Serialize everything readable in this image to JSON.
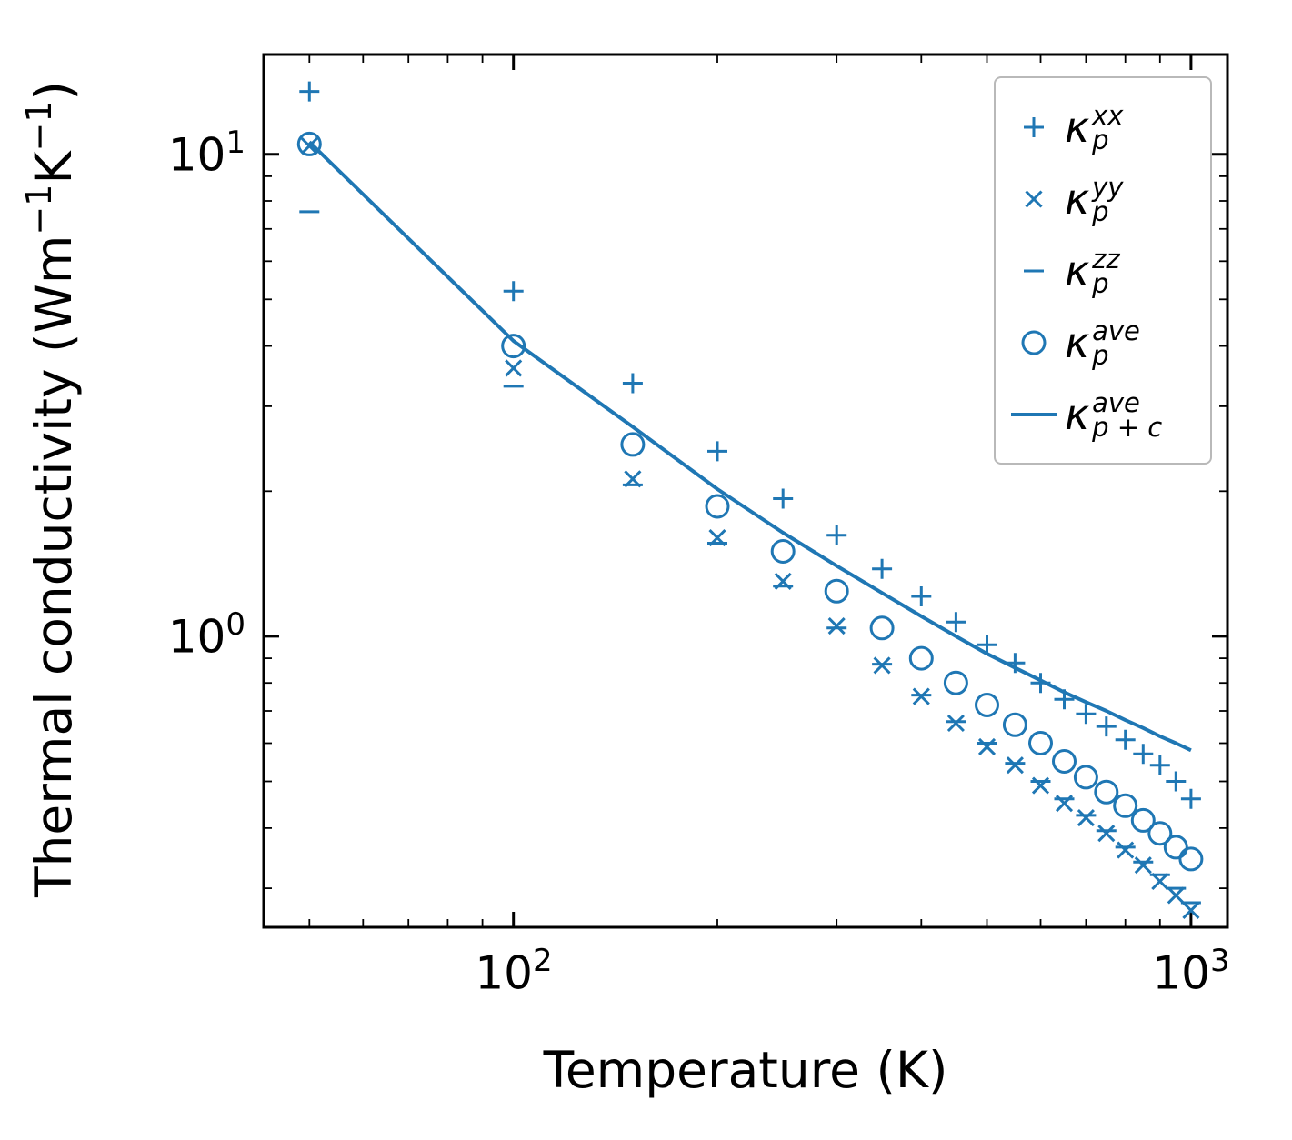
{
  "figure": {
    "xlabel": "Temperature (K)",
    "ylabel_parts": {
      "t1": "Thermal conductivity (Wm",
      "s1": "−1",
      "t2": "K",
      "s2": "−1",
      "t3": ")"
    },
    "x_ticks": [
      {
        "base": "10",
        "exp": "2"
      },
      {
        "base": "10",
        "exp": "3"
      }
    ],
    "y_ticks": [
      {
        "base": "10",
        "exp": "1"
      },
      {
        "base": "10",
        "exp": "0"
      }
    ]
  },
  "legend": {
    "items": [
      {
        "marker": "plus",
        "symbol": "κ",
        "sup": "xx",
        "sub": "p"
      },
      {
        "marker": "cross",
        "symbol": "κ",
        "sup": "yy",
        "sub": "p"
      },
      {
        "marker": "hline",
        "symbol": "κ",
        "sup": "zz",
        "sub": "p"
      },
      {
        "marker": "circle",
        "symbol": "κ",
        "sup": "ave",
        "sub": "p"
      },
      {
        "marker": "line",
        "symbol": "κ",
        "sup": "ave",
        "sub": "p + c"
      }
    ]
  },
  "colors": {
    "accent": "#1f77b4",
    "spine": "#000000",
    "legend_border": "#b9b9b9",
    "background": "#ffffff"
  },
  "chart_data": {
    "type": "scatter",
    "title": "",
    "xlabel": "Temperature (K)",
    "ylabel": "Thermal conductivity (Wm−1K−1)",
    "xscale": "log",
    "yscale": "log",
    "xlim": [
      42.8,
      1132
    ],
    "ylim": [
      0.249,
      16.1
    ],
    "grid": false,
    "legend_position": "upper right",
    "color": "#1f77b4",
    "x": [
      50,
      100,
      150,
      200,
      250,
      300,
      350,
      400,
      450,
      500,
      550,
      600,
      650,
      700,
      750,
      800,
      850,
      900,
      950,
      1000
    ],
    "series": [
      {
        "name": "kappa_p_xx",
        "marker": "plus",
        "values": [
          13.5,
          5.2,
          3.35,
          2.42,
          1.93,
          1.62,
          1.38,
          1.21,
          1.07,
          0.96,
          0.88,
          0.8,
          0.74,
          0.69,
          0.65,
          0.61,
          0.57,
          0.54,
          0.5,
          0.46
        ]
      },
      {
        "name": "kappa_p_yy",
        "marker": "cross",
        "values": [
          10.4,
          3.6,
          2.12,
          1.6,
          1.3,
          1.05,
          0.87,
          0.75,
          0.66,
          0.59,
          0.54,
          0.49,
          0.45,
          0.42,
          0.39,
          0.36,
          0.335,
          0.31,
          0.29,
          0.27
        ]
      },
      {
        "name": "kappa_p_zz",
        "marker": "hline",
        "values": [
          7.6,
          3.3,
          2.06,
          1.56,
          1.27,
          1.04,
          0.875,
          0.755,
          0.665,
          0.6,
          0.545,
          0.5,
          0.46,
          0.425,
          0.395,
          0.365,
          0.34,
          0.32,
          0.3,
          0.28
        ]
      },
      {
        "name": "kappa_p_ave",
        "marker": "circle",
        "values": [
          10.5,
          4.0,
          2.5,
          1.86,
          1.5,
          1.24,
          1.04,
          0.9,
          0.8,
          0.72,
          0.655,
          0.6,
          0.55,
          0.51,
          0.475,
          0.445,
          0.415,
          0.39,
          0.365,
          0.345
        ]
      },
      {
        "name": "kappa_p_plus_c_ave",
        "marker": "line",
        "values": [
          10.6,
          4.1,
          2.72,
          2.02,
          1.64,
          1.4,
          1.23,
          1.1,
          1.0,
          0.92,
          0.86,
          0.81,
          0.765,
          0.73,
          0.7,
          0.67,
          0.645,
          0.62,
          0.6,
          0.58
        ]
      }
    ]
  }
}
